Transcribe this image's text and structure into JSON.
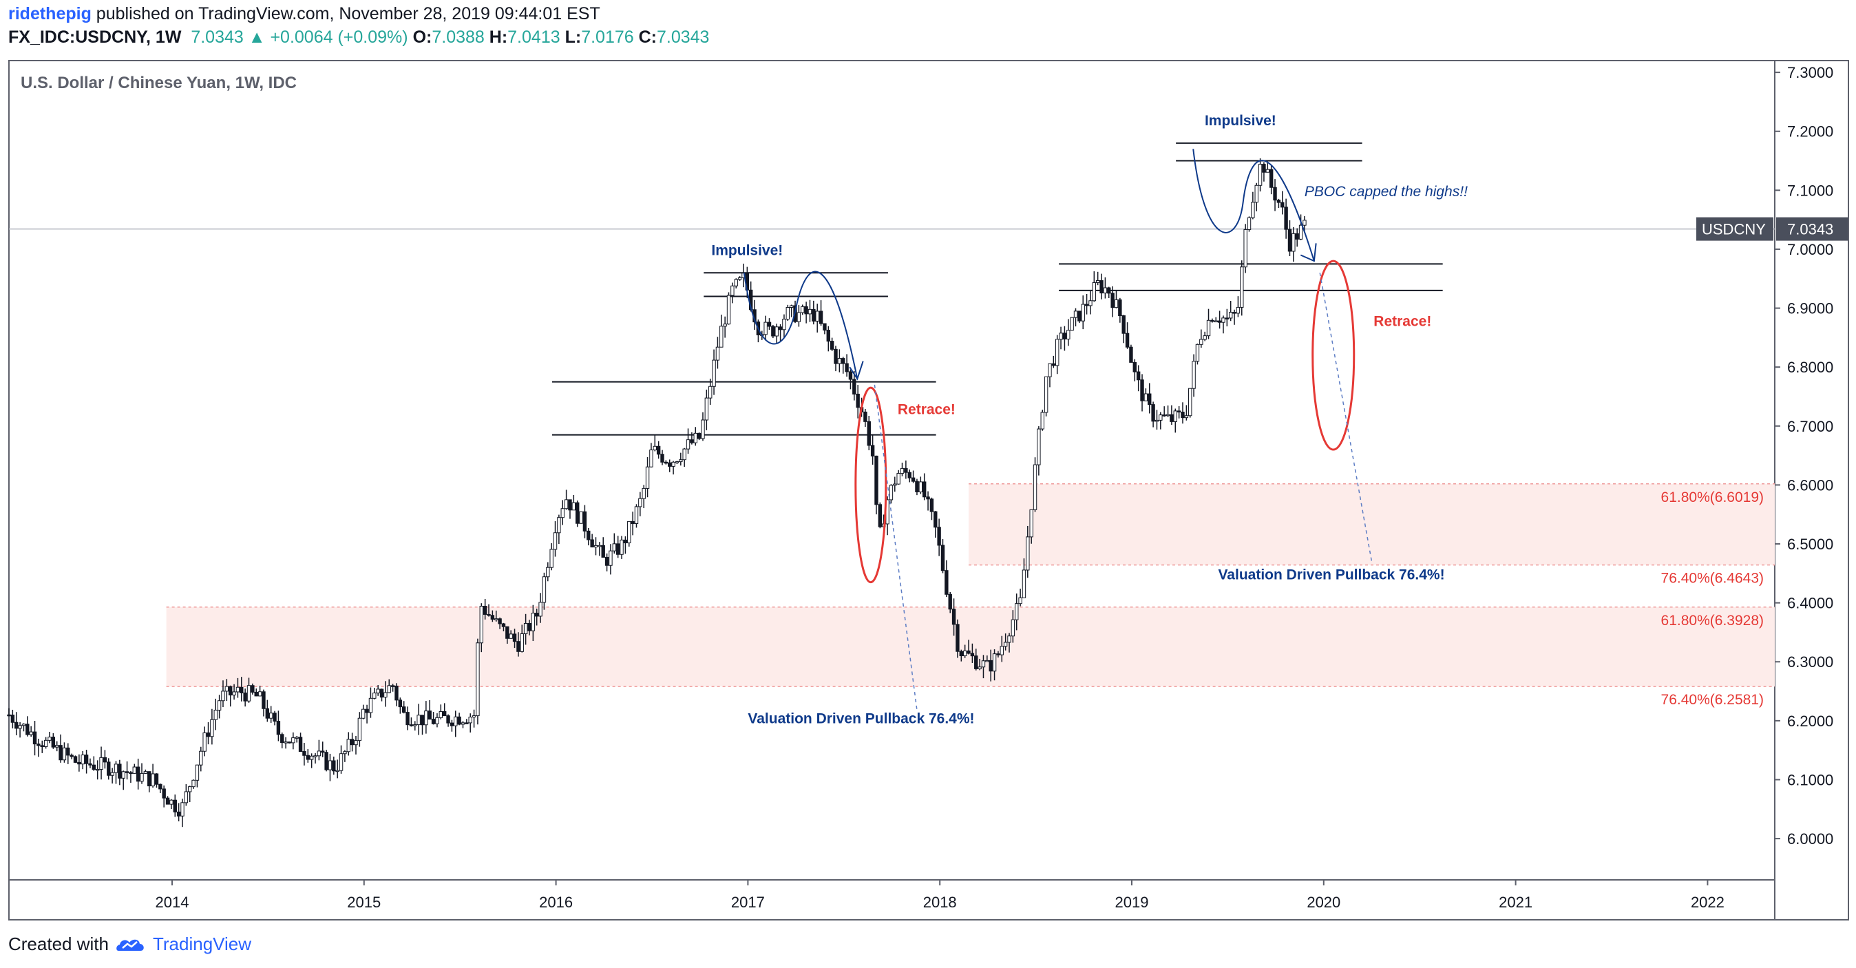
{
  "header": {
    "author": "ridethepig",
    "published_text": "published on TradingView.com, November 28, 2019 09:44:01 EST",
    "symbol": "FX_IDC:USDCNY, 1W",
    "last": "7.0343",
    "change_arrow": "▲",
    "change": "+0.0064 (+0.09%)",
    "o_label": "O:",
    "o_value": "7.0388",
    "h_label": "H:",
    "h_value": "7.0413",
    "l_label": "L:",
    "l_value": "7.0176",
    "c_label": "C:",
    "c_value": "7.0343"
  },
  "footer": {
    "created_with": "Created with",
    "brand": "TradingView"
  },
  "colors": {
    "up": "#26a69a",
    "candle": "#131722",
    "annotation_blue": "#0f3a8a",
    "annotation_red": "#e53935",
    "zone_fill": "#fdecea",
    "price_tag_bg": "#4a4f5c"
  },
  "chart_data": {
    "type": "candlestick",
    "title": "U.S. Dollar / Chinese Yuan, 1W, IDC",
    "x_ticks": [
      "2014",
      "2015",
      "2016",
      "2017",
      "2018",
      "2019",
      "2020",
      "2021",
      "2022"
    ],
    "y_ticks": [
      "6.0000",
      "6.1000",
      "6.2000",
      "6.3000",
      "6.4000",
      "6.5000",
      "6.6000",
      "6.7000",
      "6.8000",
      "6.9000",
      "7.0000",
      "7.1000",
      "7.2000",
      "7.3000"
    ],
    "ylim": [
      5.93,
      7.32
    ],
    "xlim": [
      2013.15,
      2022.35
    ],
    "price_tag": {
      "symbol": "USDCNY",
      "value": "7.0343",
      "level": 7.0343
    },
    "price_path": [
      [
        2013.15,
        6.21
      ],
      [
        2013.3,
        6.17
      ],
      [
        2013.5,
        6.13
      ],
      [
        2013.7,
        6.12
      ],
      [
        2013.9,
        6.1
      ],
      [
        2014.0,
        6.06
      ],
      [
        2014.05,
        6.05
      ],
      [
        2014.15,
        6.15
      ],
      [
        2014.25,
        6.24
      ],
      [
        2014.35,
        6.25
      ],
      [
        2014.45,
        6.24
      ],
      [
        2014.55,
        6.18
      ],
      [
        2014.7,
        6.15
      ],
      [
        2014.85,
        6.12
      ],
      [
        2014.95,
        6.17
      ],
      [
        2015.0,
        6.22
      ],
      [
        2015.1,
        6.25
      ],
      [
        2015.15,
        6.26
      ],
      [
        2015.2,
        6.21
      ],
      [
        2015.35,
        6.2
      ],
      [
        2015.58,
        6.21
      ],
      [
        2015.6,
        6.4
      ],
      [
        2015.7,
        6.36
      ],
      [
        2015.8,
        6.33
      ],
      [
        2015.9,
        6.38
      ],
      [
        2016.0,
        6.54
      ],
      [
        2016.05,
        6.58
      ],
      [
        2016.15,
        6.53
      ],
      [
        2016.25,
        6.47
      ],
      [
        2016.35,
        6.5
      ],
      [
        2016.45,
        6.58
      ],
      [
        2016.5,
        6.66
      ],
      [
        2016.6,
        6.64
      ],
      [
        2016.7,
        6.67
      ],
      [
        2016.75,
        6.68
      ],
      [
        2016.85,
        6.85
      ],
      [
        2016.92,
        6.93
      ],
      [
        2016.98,
        6.95
      ],
      [
        2017.05,
        6.87
      ],
      [
        2017.12,
        6.86
      ],
      [
        2017.2,
        6.89
      ],
      [
        2017.28,
        6.89
      ],
      [
        2017.35,
        6.89
      ],
      [
        2017.45,
        6.82
      ],
      [
        2017.52,
        6.79
      ],
      [
        2017.6,
        6.72
      ],
      [
        2017.65,
        6.65
      ],
      [
        2017.68,
        6.5
      ],
      [
        2017.72,
        6.57
      ],
      [
        2017.78,
        6.62
      ],
      [
        2017.85,
        6.62
      ],
      [
        2017.92,
        6.58
      ],
      [
        2017.98,
        6.52
      ],
      [
        2018.05,
        6.4
      ],
      [
        2018.1,
        6.32
      ],
      [
        2018.2,
        6.3
      ],
      [
        2018.25,
        6.29
      ],
      [
        2018.3,
        6.31
      ],
      [
        2018.35,
        6.35
      ],
      [
        2018.42,
        6.4
      ],
      [
        2018.48,
        6.58
      ],
      [
        2018.55,
        6.78
      ],
      [
        2018.62,
        6.84
      ],
      [
        2018.68,
        6.87
      ],
      [
        2018.75,
        6.9
      ],
      [
        2018.82,
        6.94
      ],
      [
        2018.88,
        6.93
      ],
      [
        2018.95,
        6.88
      ],
      [
        2019.02,
        6.78
      ],
      [
        2019.1,
        6.72
      ],
      [
        2019.2,
        6.71
      ],
      [
        2019.28,
        6.72
      ],
      [
        2019.35,
        6.85
      ],
      [
        2019.42,
        6.89
      ],
      [
        2019.5,
        6.88
      ],
      [
        2019.55,
        6.89
      ],
      [
        2019.6,
        7.05
      ],
      [
        2019.65,
        7.12
      ],
      [
        2019.68,
        7.15
      ],
      [
        2019.72,
        7.11
      ],
      [
        2019.78,
        7.07
      ],
      [
        2019.82,
        7.01
      ],
      [
        2019.85,
        7.02
      ],
      [
        2019.9,
        7.04
      ]
    ],
    "annotations": {
      "impulsive_1": "Impulsive!",
      "impulsive_2": "Impulsive!",
      "retrace_1": "Retrace!",
      "retrace_2": "Retrace!",
      "pboc": "PBOC capped the highs!!",
      "pullback_1": "Valuation Driven Pullback 76.4%!",
      "pullback_2": "Valuation Driven Pullback 76.4%!"
    },
    "horizontal_lines": [
      {
        "x1": 2016.77,
        "x2": 2017.73,
        "y": 6.96
      },
      {
        "x1": 2016.77,
        "x2": 2017.73,
        "y": 6.92
      },
      {
        "x1": 2015.98,
        "x2": 2017.98,
        "y": 6.775
      },
      {
        "x1": 2015.98,
        "x2": 2017.98,
        "y": 6.685
      },
      {
        "x1": 2019.23,
        "x2": 2020.2,
        "y": 7.18
      },
      {
        "x1": 2019.23,
        "x2": 2020.2,
        "y": 7.15
      },
      {
        "x1": 2018.62,
        "x2": 2020.62,
        "y": 6.975
      },
      {
        "x1": 2018.62,
        "x2": 2020.62,
        "y": 6.93
      }
    ],
    "fib_zones": [
      {
        "x_start": 2013.97,
        "upper": 6.3928,
        "lower": 6.2581,
        "upper_label": "61.80%(6.3928)",
        "lower_label": "76.40%(6.2581)"
      },
      {
        "x_start": 2018.15,
        "upper": 6.6019,
        "lower": 6.4643,
        "upper_label": "61.80%(6.6019)",
        "lower_label": "76.40%(6.4643)"
      }
    ]
  }
}
